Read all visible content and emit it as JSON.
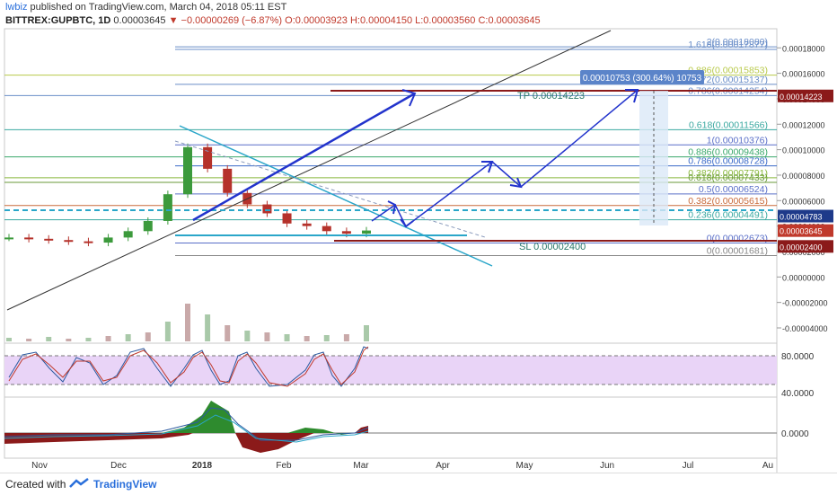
{
  "header": {
    "user": "lwbiz",
    "published": "published on TradingView.com, March 04, 2018 05:11 EST",
    "symbol": "BITTREX:GUPBTC, 1D",
    "price": "0.00003645",
    "change": "−0.00000269 (−6.87%)",
    "ohlc": "O:0.00003923 H:0.00004150 L:0.00003560 C:0.00003645"
  },
  "footer": {
    "created_with": "Created with",
    "brand": "TradingView"
  },
  "colors": {
    "bullish": "#3c9a3c",
    "bearish": "#b5322b",
    "trendline_blue": "#2233cc",
    "channel_cyan": "#2aa6c9",
    "tp_line": "#8b1a1a",
    "stoch_band": "#e9d4f7",
    "price_label_bg": "#1e3a8a"
  },
  "chart_data": {
    "type": "line",
    "xlabel": "",
    "ylabel": "",
    "x_ticks": [
      "Nov",
      "Dec",
      "2018",
      "Feb",
      "Mar",
      "Apr",
      "May",
      "Jun",
      "Jul",
      "Au"
    ],
    "price_axis": {
      "ylim": [
        -5.2e-06,
        1.95e-05
      ],
      "ticks": [
        "0.00018000",
        "0.00016000",
        "0.00014000",
        "0.00012000",
        "0.00010000",
        "0.00008000",
        "0.00006000",
        "0.00004000",
        "0.00002000",
        "0.00000000",
        "-0.00002000",
        "-0.00004000"
      ]
    },
    "price_badges": [
      {
        "label": "0.00014223",
        "value": 0.00014223,
        "color": "#8b1a1a"
      },
      {
        "label": "0.00004783",
        "value": 4.783e-05,
        "color": "#1e3a8a"
      },
      {
        "label": "0.00003645",
        "value": 3.645e-05,
        "color": "#c0392b"
      },
      {
        "label": "0.00002400",
        "value": 2.4e-05,
        "color": "#8b1a1a"
      }
    ],
    "fib_levels": [
      {
        "label": "2(0.00018080)",
        "value": 0.0001808
      },
      {
        "label": "1.618(0.00017877)",
        "value": 0.00017877
      },
      {
        "label": "0.886(0.00015853)",
        "value": 0.00015853
      },
      {
        "label": "1.272(0.00015137)",
        "value": 0.00015137
      },
      {
        "label": "0.786(0.00014254)",
        "value": 0.00014254
      },
      {
        "label": "0.618(0.00011566)",
        "value": 0.00011566
      },
      {
        "label": "1(0.00010376)",
        "value": 0.00010376
      },
      {
        "label": "0.886(0.00009438)",
        "value": 9.438e-05
      },
      {
        "label": "0.786(0.00008728)",
        "value": 8.728e-05
      },
      {
        "label": "0.382(0.00007791)",
        "value": 7.791e-05
      },
      {
        "label": "0.618(0.00007433)",
        "value": 7.433e-05
      },
      {
        "label": "0.5(0.00006524)",
        "value": 6.524e-05
      },
      {
        "label": "0.382(0.00005615)",
        "value": 5.615e-05
      },
      {
        "label": "0.236(0.00004491)",
        "value": 4.491e-05
      },
      {
        "label": "0(0.00002673)",
        "value": 2.673e-05
      },
      {
        "label": "0(0.00001681)",
        "value": 1.681e-05
      }
    ],
    "annotations": [
      {
        "label": "TP 0.00014223",
        "value": 0.00014223
      },
      {
        "label": "SL 0.00002400",
        "value": 2.4e-05
      },
      {
        "label": "0.00010753 (300.64%) 10753",
        "value": 0.00010753
      }
    ],
    "price_series": {
      "name": "GUPBTC",
      "dates": [
        "Oct 30",
        "Nov 6",
        "Nov 13",
        "Nov 20",
        "Nov 27",
        "Dec 4",
        "Dec 11",
        "Dec 18",
        "Dec 25",
        "Jan 1",
        "Jan 8",
        "Jan 15",
        "Jan 22",
        "Jan 29",
        "Feb 5",
        "Feb 12",
        "Feb 19",
        "Feb 26",
        "Mar 4"
      ],
      "close": [
        3.1e-05,
        3e-05,
        2.9e-05,
        2.8e-05,
        2.7e-05,
        3.1e-05,
        3.6e-05,
        4.4e-05,
        6.5e-05,
        0.000102,
        8.5e-05,
        6.6e-05,
        5.7e-05,
        5e-05,
        4.2e-05,
        4e-05,
        3.6e-05,
        3.4e-05,
        3.65e-05
      ]
    },
    "stochastic": {
      "ticks": [
        "80.0000",
        "40.0000"
      ],
      "band": [
        20,
        80
      ]
    },
    "macd": {
      "ticks": [
        "0.0000"
      ]
    }
  }
}
